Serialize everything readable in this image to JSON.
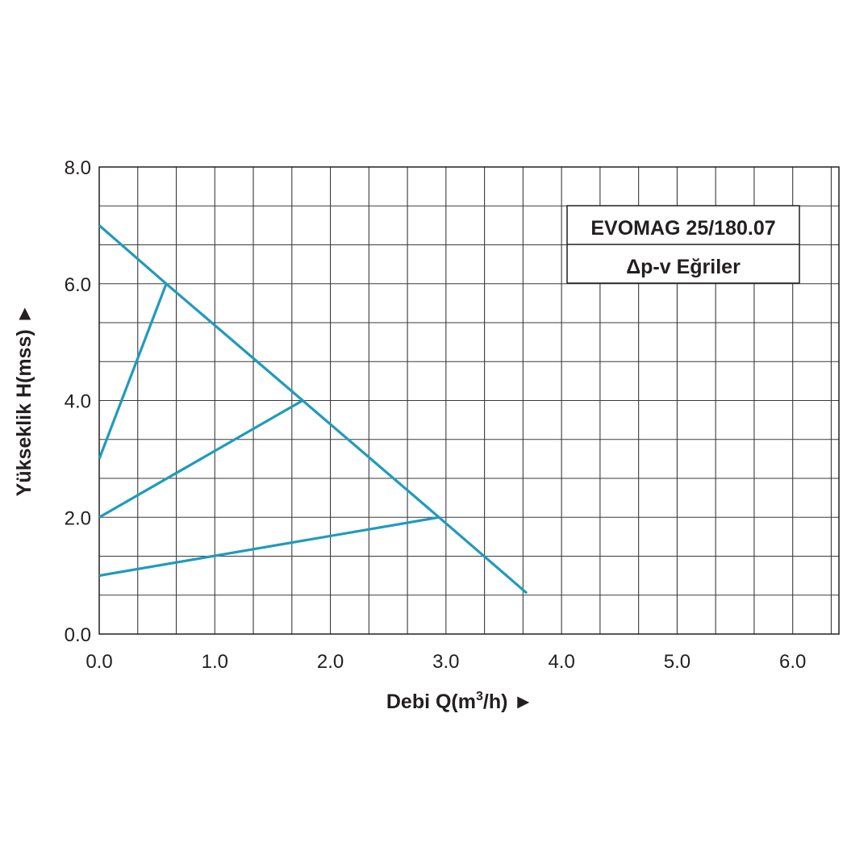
{
  "chart_data": {
    "type": "line",
    "xlabel": {
      "prefix": "Debi Q(m",
      "sup": "3",
      "suffix": "/h)",
      "arrow": "►"
    },
    "ylabel": {
      "text": "Yükseklik H(mss)",
      "arrow": "►"
    },
    "xlim": [
      0,
      6.4
    ],
    "ylim": [
      0,
      8
    ],
    "x_ticks": [
      0,
      1,
      2,
      3,
      4,
      5,
      6
    ],
    "x_tick_labels": [
      "0.0",
      "1.0",
      "2.0",
      "3.0",
      "4.0",
      "5.0",
      "6.0"
    ],
    "y_ticks": [
      0,
      2,
      4,
      6,
      8
    ],
    "y_tick_labels": [
      "0.0",
      "2.0",
      "4.0",
      "6.0",
      "8.0"
    ],
    "grid": true,
    "legend_box": {
      "line1": "EVOMAG 25/180.07",
      "line2": "Δp-v Eğriler",
      "placement": "top-right"
    },
    "color": "#1f9bbb",
    "series": [
      {
        "points": [
          [
            0.0,
            7.0
          ],
          [
            0.58,
            6.0
          ],
          [
            1.76,
            4.0
          ],
          [
            2.94,
            2.0
          ],
          [
            3.7,
            0.7
          ]
        ]
      },
      {
        "points": [
          [
            0.0,
            3.0
          ],
          [
            0.58,
            6.0
          ]
        ]
      },
      {
        "points": [
          [
            0.0,
            2.0
          ],
          [
            1.76,
            4.0
          ]
        ]
      },
      {
        "points": [
          [
            0.0,
            1.0
          ],
          [
            2.94,
            2.0
          ]
        ]
      }
    ]
  }
}
